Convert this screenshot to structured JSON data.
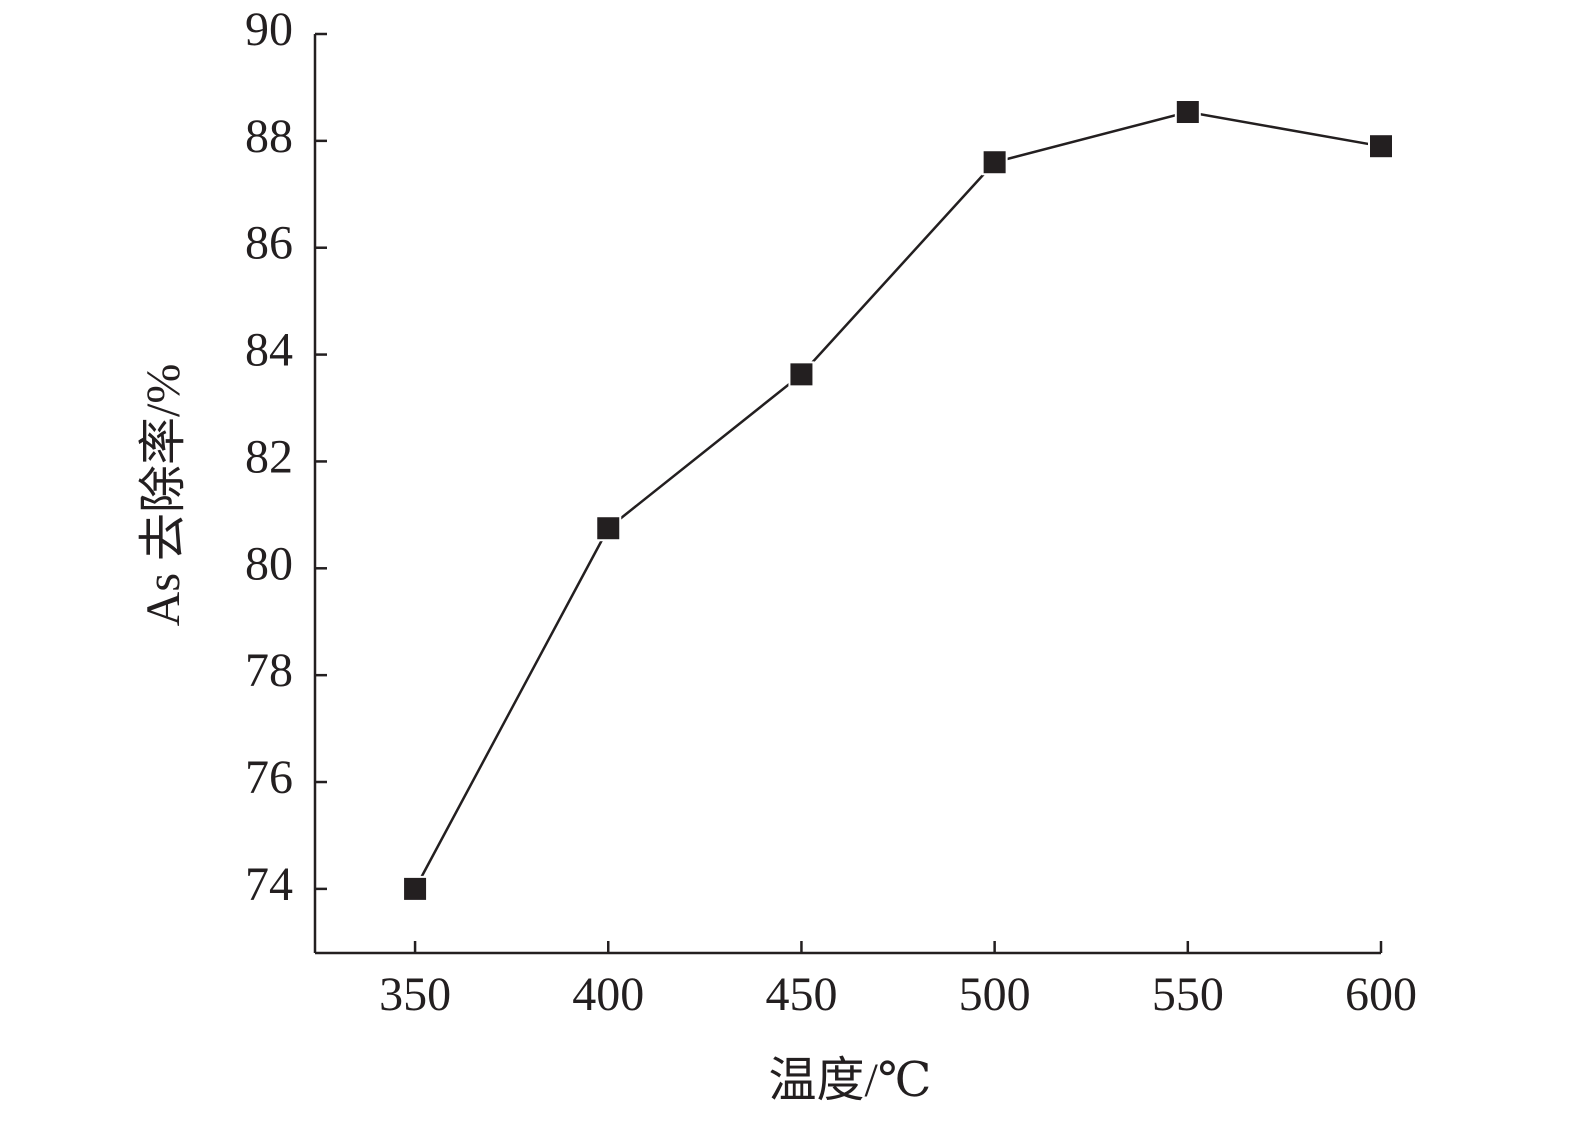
{
  "chart_data": {
    "type": "line",
    "x_label": "温度/℃",
    "y_label": "As 去除率/%",
    "x": [
      350,
      400,
      450,
      500,
      550,
      600
    ],
    "series": [
      {
        "color": "#231f20",
        "values": [
          74.0,
          80.75,
          83.63,
          87.6,
          88.54,
          87.9
        ]
      }
    ],
    "xlim": [
      324.1,
      600
    ],
    "ylim": [
      72.8,
      90
    ],
    "xticks": [
      350,
      400,
      450,
      500,
      550,
      600
    ],
    "yticks": [
      74,
      76,
      78,
      80,
      82,
      84,
      86,
      88,
      90
    ]
  }
}
